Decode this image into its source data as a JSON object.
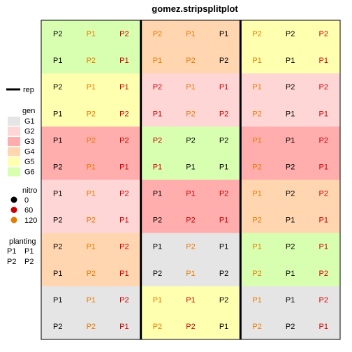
{
  "chart_data": {
    "type": "heatmap",
    "title": "gomez.stripsplitplot",
    "nrows": 12,
    "ncols": 9,
    "rep_boundaries_after_col": [
      3,
      6
    ],
    "gen_colors": {
      "G1": "#e5e5e5",
      "G2": "#ffd6d6",
      "G3": "#ffadad",
      "G4": "#ffd6b0",
      "G5": "#ffffb0",
      "G6": "#d8ffb0"
    },
    "nitro_colors": {
      "0": "#000000",
      "60": "#cc0000",
      "120": "#e87a00"
    },
    "gen_grid": [
      [
        "G6",
        "G6",
        "G6",
        "G4",
        "G4",
        "G4",
        "G5",
        "G5",
        "G5"
      ],
      [
        "G6",
        "G6",
        "G6",
        "G4",
        "G4",
        "G4",
        "G5",
        "G5",
        "G5"
      ],
      [
        "G5",
        "G5",
        "G5",
        "G2",
        "G2",
        "G2",
        "G2",
        "G2",
        "G2"
      ],
      [
        "G5",
        "G5",
        "G5",
        "G2",
        "G2",
        "G2",
        "G2",
        "G2",
        "G2"
      ],
      [
        "G3",
        "G3",
        "G3",
        "G6",
        "G6",
        "G6",
        "G3",
        "G3",
        "G3"
      ],
      [
        "G3",
        "G3",
        "G3",
        "G6",
        "G6",
        "G6",
        "G3",
        "G3",
        "G3"
      ],
      [
        "G2",
        "G2",
        "G2",
        "G3",
        "G3",
        "G3",
        "G4",
        "G4",
        "G4"
      ],
      [
        "G2",
        "G2",
        "G2",
        "G3",
        "G3",
        "G3",
        "G4",
        "G4",
        "G4"
      ],
      [
        "G4",
        "G4",
        "G4",
        "G1",
        "G1",
        "G1",
        "G6",
        "G6",
        "G6"
      ],
      [
        "G4",
        "G4",
        "G4",
        "G1",
        "G1",
        "G1",
        "G6",
        "G6",
        "G6"
      ],
      [
        "G1",
        "G1",
        "G1",
        "G5",
        "G5",
        "G5",
        "G1",
        "G1",
        "G1"
      ],
      [
        "G1",
        "G1",
        "G1",
        "G5",
        "G5",
        "G5",
        "G1",
        "G1",
        "G1"
      ]
    ],
    "planting_grid": [
      [
        "P2",
        "P1",
        "P2",
        "P2",
        "P1",
        "P1",
        "P2",
        "P2",
        "P2"
      ],
      [
        "P1",
        "P2",
        "P1",
        "P1",
        "P2",
        "P2",
        "P1",
        "P1",
        "P1"
      ],
      [
        "P2",
        "P1",
        "P1",
        "P2",
        "P1",
        "P1",
        "P1",
        "P2",
        "P2"
      ],
      [
        "P1",
        "P2",
        "P2",
        "P1",
        "P2",
        "P2",
        "P2",
        "P1",
        "P1"
      ],
      [
        "P1",
        "P2",
        "P2",
        "P2",
        "P2",
        "P2",
        "P1",
        "P1",
        "P2"
      ],
      [
        "P2",
        "P1",
        "P1",
        "P1",
        "P1",
        "P1",
        "P2",
        "P2",
        "P1"
      ],
      [
        "P1",
        "P1",
        "P2",
        "P1",
        "P1",
        "P2",
        "P1",
        "P2",
        "P2"
      ],
      [
        "P2",
        "P2",
        "P1",
        "P2",
        "P2",
        "P1",
        "P2",
        "P1",
        "P1"
      ],
      [
        "P2",
        "P1",
        "P2",
        "P1",
        "P2",
        "P1",
        "P1",
        "P2",
        "P1"
      ],
      [
        "P1",
        "P2",
        "P1",
        "P2",
        "P1",
        "P2",
        "P2",
        "P1",
        "P2"
      ],
      [
        "P1",
        "P1",
        "P2",
        "P1",
        "P1",
        "P2",
        "P1",
        "P1",
        "P2"
      ],
      [
        "P2",
        "P2",
        "P1",
        "P2",
        "P2",
        "P1",
        "P2",
        "P2",
        "P1"
      ]
    ],
    "nitro_grid": [
      [
        "0",
        "120",
        "60",
        "120",
        "120",
        "0",
        "120",
        "0",
        "60"
      ],
      [
        "0",
        "120",
        "60",
        "120",
        "120",
        "0",
        "120",
        "0",
        "60"
      ],
      [
        "0",
        "120",
        "60",
        "60",
        "120",
        "60",
        "120",
        "0",
        "60"
      ],
      [
        "0",
        "120",
        "60",
        "60",
        "120",
        "60",
        "120",
        "0",
        "60"
      ],
      [
        "0",
        "120",
        "60",
        "60",
        "0",
        "0",
        "120",
        "0",
        "60"
      ],
      [
        "0",
        "120",
        "60",
        "60",
        "0",
        "0",
        "120",
        "0",
        "60"
      ],
      [
        "0",
        "120",
        "60",
        "0",
        "60",
        "60",
        "120",
        "0",
        "60"
      ],
      [
        "0",
        "120",
        "60",
        "0",
        "60",
        "60",
        "120",
        "0",
        "60"
      ],
      [
        "0",
        "120",
        "60",
        "0",
        "120",
        "0",
        "120",
        "0",
        "60"
      ],
      [
        "0",
        "120",
        "60",
        "0",
        "120",
        "0",
        "120",
        "0",
        "60"
      ],
      [
        "0",
        "120",
        "60",
        "120",
        "60",
        "0",
        "120",
        "0",
        "60"
      ],
      [
        "0",
        "120",
        "60",
        "120",
        "60",
        "0",
        "120",
        "0",
        "60"
      ]
    ],
    "legend": {
      "rep": {
        "label": "rep"
      },
      "gen": {
        "title": "gen",
        "items": [
          "G1",
          "G2",
          "G3",
          "G4",
          "G5",
          "G6"
        ]
      },
      "nitro": {
        "title": "nitro",
        "items": [
          "0",
          "60",
          "120"
        ]
      },
      "planting": {
        "title": "planting",
        "items": [
          [
            "P1",
            "P1"
          ],
          [
            "P2",
            "P2"
          ]
        ]
      }
    }
  }
}
